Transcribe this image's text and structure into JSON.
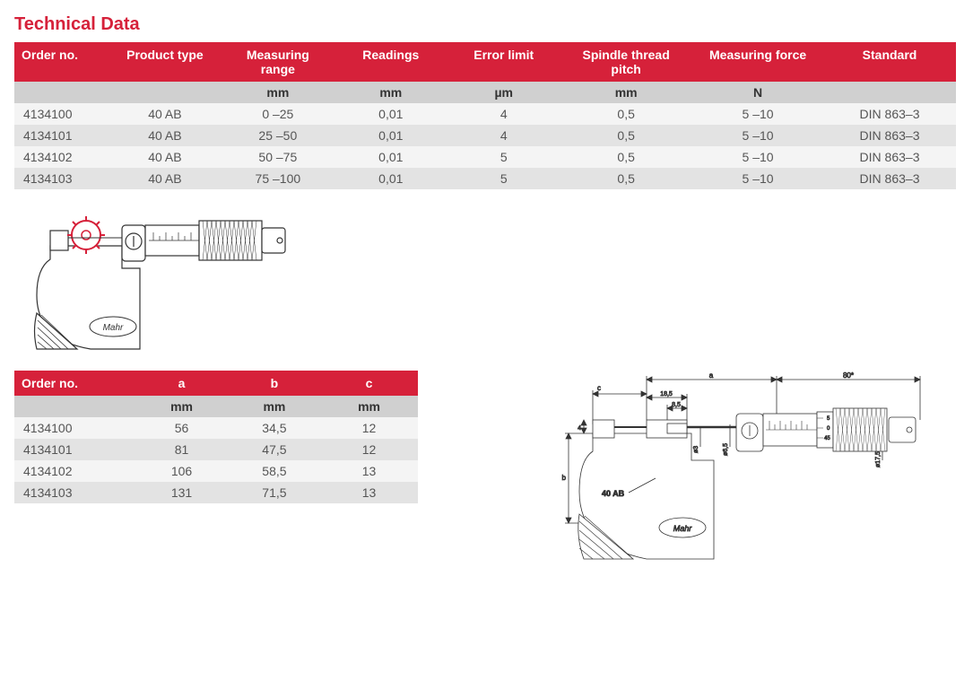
{
  "title": "Technical Data",
  "colors": {
    "brand_red": "#d6213a",
    "unit_row_bg": "#d0d0d0",
    "row_even_bg": "#f4f4f4",
    "row_odd_bg": "#e3e3e3",
    "text": "#555555"
  },
  "mainTable": {
    "headers": [
      "Order no.",
      "Product type",
      "Measuring range",
      "Readings",
      "Error limit",
      "Spindle thread pitch",
      "Measuring force",
      "Standard"
    ],
    "units": [
      "",
      "",
      "mm",
      "mm",
      "µm",
      "mm",
      "N",
      ""
    ],
    "rows": [
      [
        "4134100",
        "40 AB",
        "0 –25",
        "0,01",
        "4",
        "0,5",
        "5 –10",
        "DIN 863–3"
      ],
      [
        "4134101",
        "40 AB",
        "25 –50",
        "0,01",
        "4",
        "0,5",
        "5 –10",
        "DIN 863–3"
      ],
      [
        "4134102",
        "40 AB",
        "50 –75",
        "0,01",
        "5",
        "0,5",
        "5 –10",
        "DIN 863–3"
      ],
      [
        "4134103",
        "40 AB",
        "75 –100",
        "0,01",
        "5",
        "0,5",
        "5 –10",
        "DIN 863–3"
      ]
    ],
    "col_widths_pct": [
      10,
      12,
      12,
      12,
      12,
      14,
      14,
      14
    ]
  },
  "dimTable": {
    "headers": [
      "Order no.",
      "a",
      "b",
      "c"
    ],
    "units": [
      "",
      "mm",
      "mm",
      "mm"
    ],
    "rows": [
      [
        "4134100",
        "56",
        "34,5",
        "12"
      ],
      [
        "4134101",
        "81",
        "47,5",
        "12"
      ],
      [
        "4134102",
        "106",
        "58,5",
        "13"
      ],
      [
        "4134103",
        "131",
        "71,5",
        "13"
      ]
    ],
    "col_widths_pct": [
      30,
      23,
      23,
      24
    ]
  },
  "productDiagram": {
    "brand_text": "Mahr"
  },
  "techDiagram": {
    "brand_text": "Mahr",
    "model_label": "40 AB",
    "dim_labels": {
      "a": "a",
      "b": "b",
      "c": "c",
      "l_80": "80*",
      "l_18_5": "18,5",
      "l_8_5": "8,5",
      "l_4": "4",
      "d3": "ø3",
      "d6_5": "ø6,5",
      "d17_5": "ø17,5",
      "scale_5": "5",
      "scale_0": "0",
      "scale_45": "45"
    }
  }
}
